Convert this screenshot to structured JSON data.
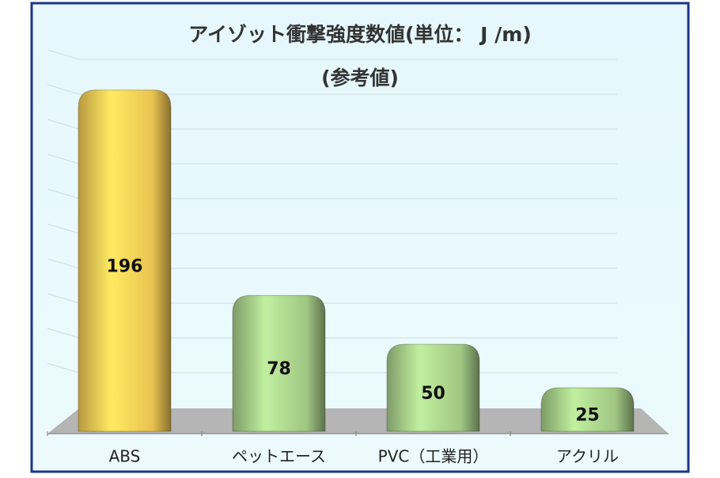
{
  "chart_data": {
    "type": "bar3d",
    "title": "アイゾット衝撃強度数値(単位： J /m)",
    "subtitle": "(参考値)",
    "categories": [
      "ABS",
      "ペットエース",
      "PVC（工業用）",
      "アクリル"
    ],
    "values": [
      196,
      78,
      50,
      25
    ],
    "colors": [
      "#f5cc55",
      "#a8d08a",
      "#a8d08a",
      "#a8d08a"
    ],
    "ylim": [
      0,
      200
    ],
    "yticks": [
      0,
      20,
      40,
      60,
      80,
      100,
      120,
      140,
      160,
      180,
      200
    ],
    "grid": true
  }
}
